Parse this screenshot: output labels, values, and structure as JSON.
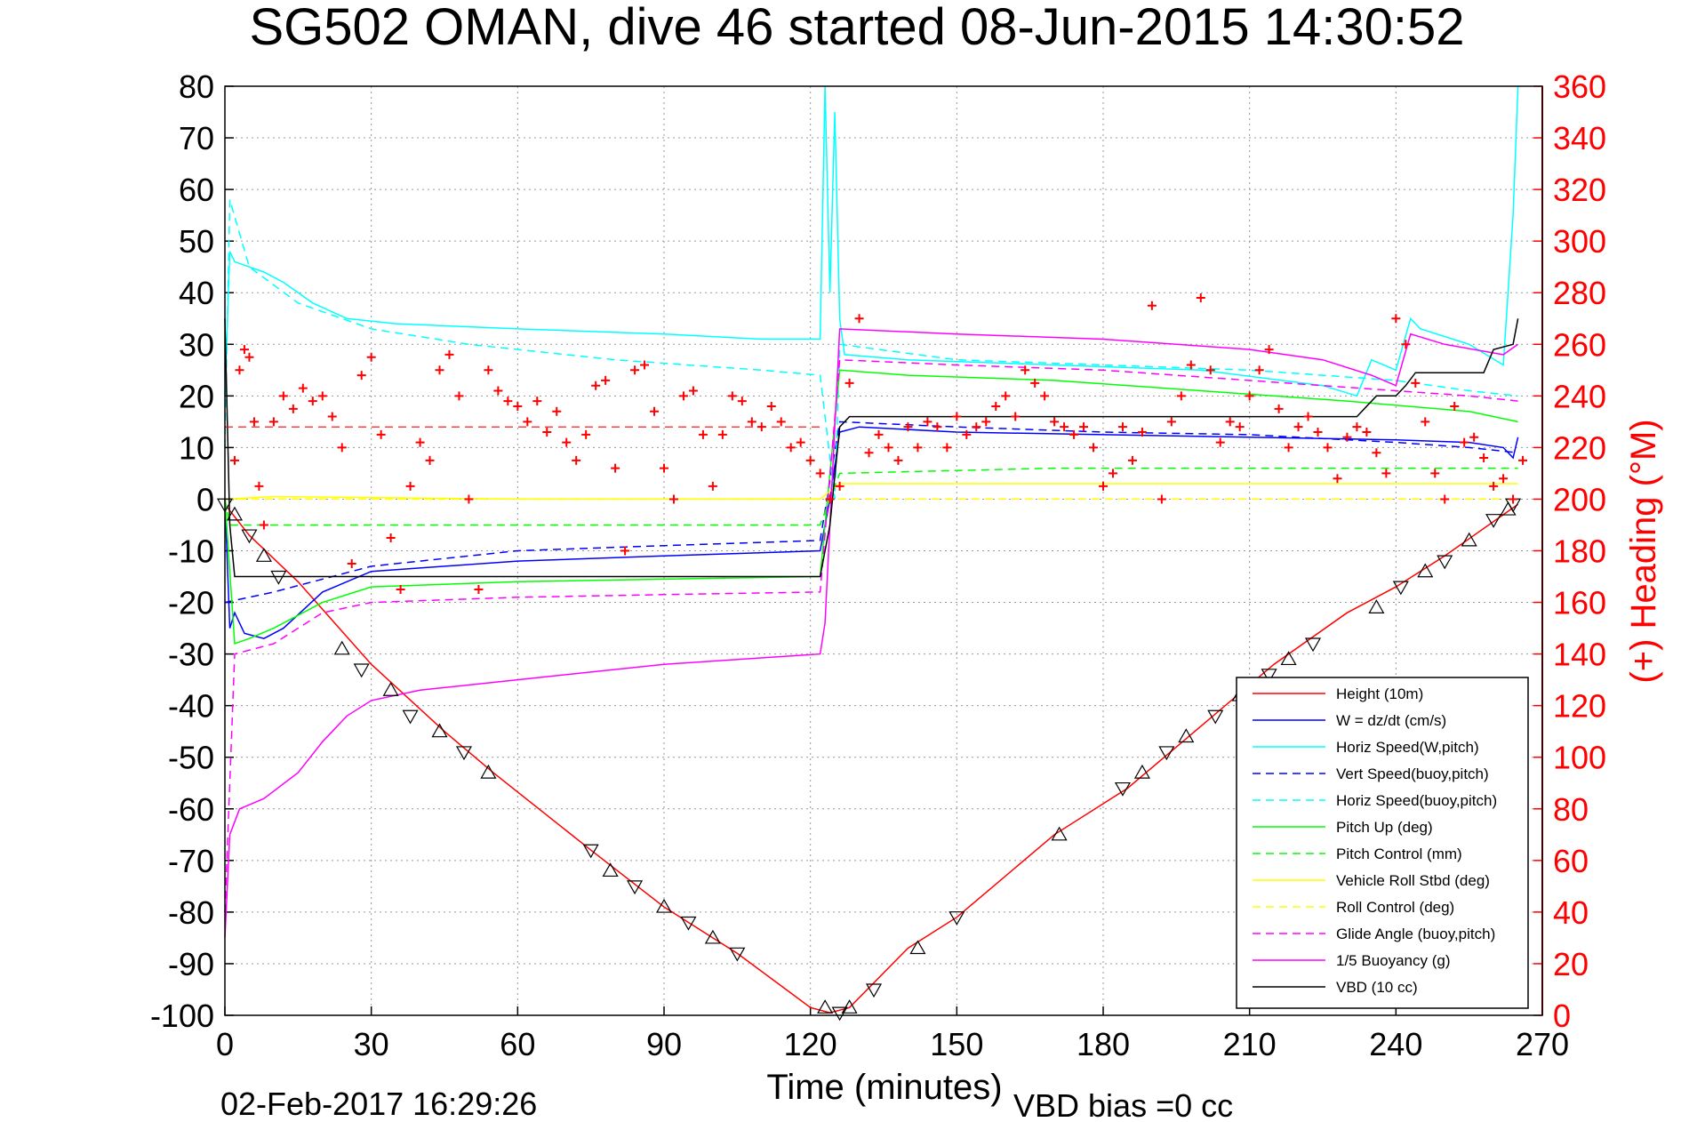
{
  "chart_data": {
    "type": "line",
    "title": "SG502 OMAN, dive 46 started 08-Jun-2015 14:30:52",
    "xlabel": "Time (minutes)",
    "ylabel": "",
    "ylabel_right": "(+) Heading (°M)",
    "xlim": [
      0,
      270
    ],
    "ylim": [
      -100,
      80
    ],
    "ylim_right": [
      0,
      360
    ],
    "x_ticks": [
      "0",
      "30",
      "60",
      "90",
      "120",
      "150",
      "180",
      "210",
      "240",
      "270"
    ],
    "y_ticks": [
      "-100",
      "-90",
      "-80",
      "-70",
      "-60",
      "-50",
      "-40",
      "-30",
      "-20",
      "-10",
      "0",
      "10",
      "20",
      "30",
      "40",
      "50",
      "60",
      "70",
      "80"
    ],
    "y_ticks_right": [
      "0",
      "20",
      "40",
      "60",
      "80",
      "100",
      "120",
      "140",
      "160",
      "180",
      "200",
      "220",
      "240",
      "260",
      "280",
      "300",
      "320",
      "340",
      "360"
    ],
    "grid": true,
    "legend_position": "bottom-right",
    "footer_date": "02-Feb-2017 16:29:26",
    "footer_note": "VBD bias =0 cc",
    "series": [
      {
        "name": "Height (10m)",
        "color": "#ff0000",
        "style": "solid",
        "x": [
          0,
          5,
          15,
          30,
          45,
          55,
          75,
          90,
          105,
          120,
          124,
          128,
          140,
          150,
          170,
          185,
          200,
          215,
          230,
          240,
          250,
          262,
          265
        ],
        "y": [
          -1,
          -7,
          -16,
          -32,
          -45,
          -53,
          -68,
          -79,
          -88,
          -98.5,
          -99.5,
          -98.5,
          -87,
          -81,
          -65,
          -56,
          -44,
          -32,
          -22,
          -17,
          -11,
          -3,
          -1
        ]
      },
      {
        "name": "W = dz/dt (cm/s)",
        "color": "#0000ff",
        "style": "solid",
        "x": [
          0,
          1,
          2,
          4,
          8,
          12,
          20,
          30,
          60,
          90,
          122,
          124,
          126,
          130,
          150,
          180,
          210,
          240,
          255,
          262,
          264,
          265
        ],
        "y": [
          0,
          -25,
          -22,
          -26,
          -27,
          -25,
          -18,
          -14,
          -12,
          -11,
          -10,
          0,
          13,
          14,
          13,
          12.5,
          12,
          11.5,
          11,
          10,
          8,
          12
        ]
      },
      {
        "name": "Horiz Speed(W,pitch)",
        "color": "#00ffff",
        "style": "solid",
        "x": [
          0,
          1,
          2,
          5,
          8,
          12,
          18,
          25,
          35,
          60,
          90,
          110,
          122,
          123,
          124,
          125,
          126,
          127,
          140,
          170,
          200,
          225,
          232,
          235,
          240,
          243,
          245,
          255,
          262,
          264,
          265
        ],
        "y": [
          20,
          48,
          46,
          45,
          44,
          42,
          38,
          35,
          34,
          33,
          32,
          31,
          31,
          80,
          40,
          75,
          35,
          28,
          27,
          26,
          25,
          22,
          20,
          27,
          25,
          35,
          33,
          30,
          26,
          55,
          80
        ]
      },
      {
        "name": "Vert Speed(buoy,pitch)",
        "color": "#0000ff",
        "style": "dashed",
        "x": [
          0,
          10,
          30,
          60,
          90,
          122,
          126,
          150,
          180,
          210,
          240,
          255,
          265
        ],
        "y": [
          -20,
          -18,
          -13,
          -10,
          -9,
          -8,
          15,
          14,
          13,
          12.5,
          11,
          10,
          9
        ]
      },
      {
        "name": "Horiz Speed(buoy,pitch)",
        "color": "#00ffff",
        "style": "dashed",
        "x": [
          0,
          1,
          5,
          15,
          30,
          50,
          80,
          110,
          122,
          125,
          126,
          150,
          180,
          210,
          240,
          255,
          265
        ],
        "y": [
          10,
          58,
          45,
          38,
          33,
          30,
          27,
          25,
          24,
          0,
          30,
          27,
          26,
          25,
          23,
          21,
          20
        ]
      },
      {
        "name": "Pitch Up (deg)",
        "color": "#00ff00",
        "style": "solid",
        "x": [
          0,
          2,
          5,
          10,
          20,
          30,
          60,
          90,
          122,
          126,
          140,
          170,
          200,
          230,
          255,
          265
        ],
        "y": [
          0,
          -28,
          -27,
          -25,
          -20,
          -17,
          -16,
          -15.5,
          -15,
          25,
          24,
          23,
          21,
          19,
          17,
          15
        ]
      },
      {
        "name": "Pitch Control (mm)",
        "color": "#00ff00",
        "style": "dashed",
        "x": [
          0,
          1,
          10,
          122,
          126,
          170,
          210,
          265
        ],
        "y": [
          0,
          -5,
          -5,
          -5,
          5,
          6,
          6,
          6
        ]
      },
      {
        "name": "Vehicle Roll Stbd (deg)",
        "color": "#ffff00",
        "style": "solid",
        "x": [
          0,
          10,
          60,
          122,
          126,
          200,
          265
        ],
        "y": [
          0,
          0.5,
          0,
          0,
          3,
          3,
          3
        ]
      },
      {
        "name": "Roll Control (deg)",
        "color": "#ffff00",
        "style": "dashed",
        "x": [
          0,
          122,
          126,
          265
        ],
        "y": [
          0,
          0,
          0,
          0
        ]
      },
      {
        "name": "Glide Angle (buoy,pitch)",
        "color": "#ff00ff",
        "style": "dashed",
        "x": [
          0,
          2,
          10,
          20,
          30,
          60,
          90,
          122,
          126,
          150,
          180,
          210,
          240,
          255,
          265
        ],
        "y": [
          -80,
          -30,
          -28,
          -22,
          -20,
          -19,
          -18.5,
          -18,
          27,
          26,
          25,
          23,
          21,
          20,
          19
        ]
      },
      {
        "name": "1/5 Buoyancy (g)",
        "color": "#ff00ff",
        "style": "solid",
        "x": [
          0,
          1,
          3,
          8,
          15,
          20,
          25,
          30,
          40,
          60,
          90,
          122,
          123,
          126,
          150,
          180,
          210,
          225,
          235,
          240,
          243,
          250,
          262,
          265
        ],
        "y": [
          -85,
          -65,
          -60,
          -58,
          -53,
          -47,
          -42,
          -39,
          -37,
          -35,
          -32,
          -30,
          -24,
          33,
          32,
          31,
          29,
          27,
          24,
          22,
          32,
          30,
          28,
          30
        ]
      },
      {
        "name": "VBD (10 cc)",
        "color": "#000000",
        "style": "solid",
        "x": [
          0,
          1,
          2,
          122,
          124,
          126,
          128,
          230,
          232,
          236,
          240,
          242,
          244,
          258,
          260,
          264,
          265
        ],
        "y": [
          35,
          -5,
          -15,
          -15,
          -5,
          14,
          16,
          16,
          16,
          20,
          20,
          22,
          24.5,
          24.5,
          29,
          30,
          35
        ]
      }
    ],
    "heading_series": {
      "name": "(+) Heading",
      "color": "#ff0000",
      "marker": "+",
      "axis": "right",
      "reference_dashed_heading": 228,
      "x": [
        2,
        3,
        4,
        5,
        6,
        7,
        8,
        10,
        12,
        14,
        16,
        18,
        20,
        22,
        24,
        26,
        28,
        30,
        32,
        34,
        36,
        38,
        40,
        42,
        44,
        46,
        48,
        50,
        52,
        54,
        56,
        58,
        60,
        62,
        64,
        66,
        68,
        70,
        72,
        74,
        76,
        78,
        80,
        82,
        84,
        86,
        88,
        90,
        92,
        94,
        96,
        98,
        100,
        102,
        104,
        106,
        108,
        110,
        112,
        114,
        116,
        118,
        120,
        122,
        124,
        126,
        128,
        130,
        132,
        134,
        136,
        138,
        140,
        142,
        144,
        146,
        148,
        150,
        152,
        154,
        156,
        158,
        160,
        162,
        164,
        166,
        168,
        170,
        172,
        174,
        176,
        178,
        180,
        182,
        184,
        186,
        188,
        190,
        192,
        194,
        196,
        198,
        200,
        202,
        204,
        206,
        208,
        210,
        212,
        214,
        216,
        218,
        220,
        222,
        224,
        226,
        228,
        230,
        232,
        234,
        236,
        238,
        240,
        242,
        244,
        246,
        248,
        250,
        252,
        254,
        256,
        258,
        260,
        262,
        264,
        266
      ],
      "y": [
        215,
        250,
        258,
        255,
        230,
        205,
        190,
        230,
        240,
        235,
        243,
        238,
        240,
        232,
        220,
        175,
        248,
        255,
        225,
        185,
        165,
        205,
        222,
        215,
        250,
        256,
        240,
        200,
        165,
        250,
        242,
        238,
        236,
        230,
        238,
        226,
        234,
        222,
        215,
        225,
        244,
        246,
        212,
        180,
        250,
        252,
        234,
        212,
        200,
        240,
        242,
        225,
        205,
        225,
        240,
        238,
        230,
        228,
        236,
        230,
        220,
        222,
        215,
        210,
        200,
        205,
        245,
        270,
        218,
        225,
        220,
        215,
        228,
        220,
        230,
        228,
        220,
        232,
        225,
        228,
        230,
        236,
        240,
        232,
        250,
        245,
        240,
        230,
        228,
        225,
        228,
        220,
        205,
        210,
        228,
        215,
        226,
        275,
        200,
        230,
        240,
        252,
        278,
        250,
        222,
        230,
        228,
        240,
        250,
        258,
        235,
        220,
        228,
        232,
        226,
        220,
        208,
        224,
        228,
        226,
        218,
        210,
        270,
        260,
        245,
        230,
        210,
        200,
        236,
        222,
        224,
        216,
        205,
        208,
        200,
        215
      ]
    },
    "depth_markers": {
      "marker": "triangle",
      "color": "#000000",
      "x": [
        0,
        2,
        5,
        8,
        11,
        24,
        28,
        34,
        38,
        44,
        49,
        54,
        75,
        79,
        84,
        90,
        95,
        100,
        105,
        123,
        126,
        128,
        133,
        142,
        150,
        171,
        184,
        188,
        193,
        197,
        203,
        208,
        214,
        218,
        223,
        236,
        241,
        246,
        250,
        255,
        260,
        263,
        264
      ],
      "y": [
        -1,
        -3,
        -7,
        -11,
        -15,
        -29,
        -33,
        -37,
        -42,
        -45,
        -49,
        -53,
        -68,
        -72,
        -75,
        -79,
        -82,
        -85,
        -88,
        -98.5,
        -99.5,
        -98.5,
        -95,
        -87,
        -81,
        -65,
        -56,
        -53,
        -49,
        -46,
        -42,
        -38,
        -34,
        -31,
        -28,
        -21,
        -17,
        -14,
        -12,
        -8,
        -4,
        -2,
        -1
      ]
    }
  }
}
